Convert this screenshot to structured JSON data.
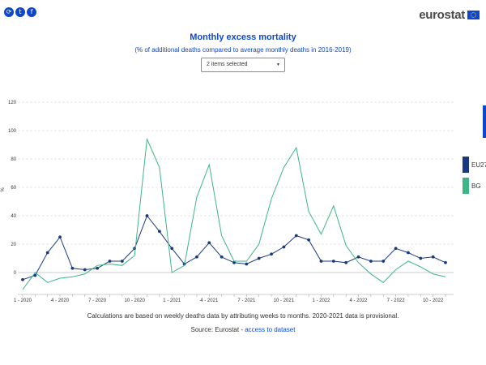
{
  "header": {
    "share_icons": [
      "share-icon",
      "twitter-icon",
      "facebook-icon"
    ],
    "logo_text": "eurostat"
  },
  "dropdown": {
    "value": "2 items selected"
  },
  "footnote": "Calculations are based on weekly deaths data by attributing weeks to months. 2020-2021 data is provisional.",
  "source": {
    "prefix": "Source: Eurostat - ",
    "link": "access to dataset"
  },
  "colors": {
    "eu27": "#1a3a80",
    "bg": "#3db586",
    "title": "#0e47cb",
    "grid": "#cccccc"
  },
  "chart_data": {
    "type": "line",
    "title": "Monthly excess mortality",
    "subtitle": "(% of additional deaths compared to average monthly deaths in 2016-2019)",
    "xlabel": "",
    "ylabel": "%",
    "ylim": [
      -10,
      120
    ],
    "yticks": [
      0,
      20,
      40,
      60,
      80,
      100,
      120
    ],
    "grid": true,
    "legend_position": "right",
    "x": [
      "1 - 2020",
      "2 - 2020",
      "3 - 2020",
      "4 - 2020",
      "5 - 2020",
      "6 - 2020",
      "7 - 2020",
      "8 - 2020",
      "9 - 2020",
      "10 - 2020",
      "11 - 2020",
      "12 - 2020",
      "1 - 2021",
      "2 - 2021",
      "3 - 2021",
      "4 - 2021",
      "5 - 2021",
      "6 - 2021",
      "7 - 2021",
      "8 - 2021",
      "9 - 2021",
      "10 - 2021",
      "11 - 2021",
      "12 - 2021",
      "1 - 2022",
      "2 - 2022",
      "3 - 2022",
      "4 - 2022",
      "5 - 2022",
      "6 - 2022",
      "7 - 2022",
      "8 - 2022",
      "9 - 2022",
      "10 - 2022",
      "11 - 2022"
    ],
    "xtick_labels": [
      "1 - 2020",
      "4 - 2020",
      "7 - 2020",
      "10 - 2020",
      "1 - 2021",
      "4 - 2021",
      "7 - 2021",
      "10 - 2021",
      "1 - 2022",
      "4 - 2022",
      "7 - 2022",
      "10 - 2022"
    ],
    "series": [
      {
        "name": "EU27",
        "color": "#1a3a80",
        "markers": true,
        "values": [
          -5,
          -2,
          14,
          25,
          3,
          2,
          3,
          8,
          8,
          17,
          40,
          29,
          17,
          6,
          11,
          21,
          11,
          7,
          6,
          10,
          13,
          18,
          26,
          23,
          8,
          8,
          7,
          11,
          8,
          8,
          17,
          14,
          10,
          11,
          7
        ]
      },
      {
        "name": "BG",
        "color": "#3db586",
        "markers": false,
        "values": [
          -12,
          0,
          -7,
          -4,
          -3,
          -1,
          5,
          6,
          5,
          12,
          94,
          74,
          0,
          5,
          53,
          76,
          26,
          8,
          8,
          20,
          52,
          74,
          88,
          43,
          27,
          47,
          19,
          7,
          -1,
          -7,
          2,
          8,
          4,
          -1,
          -3
        ]
      }
    ]
  }
}
